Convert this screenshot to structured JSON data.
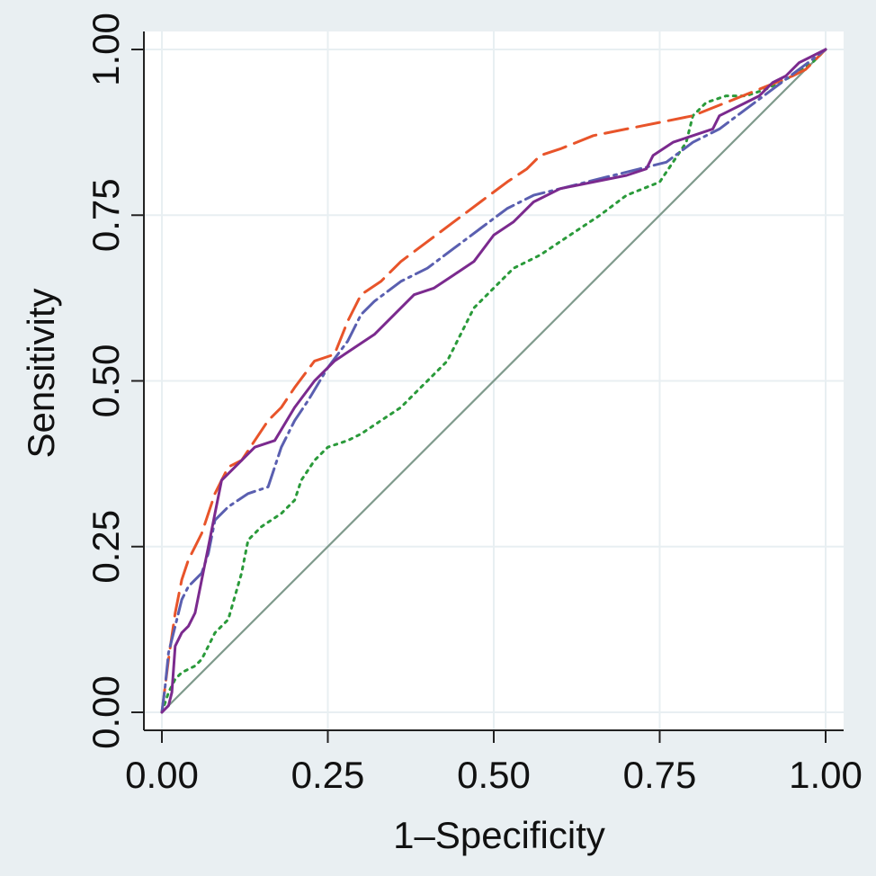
{
  "chart_data": {
    "type": "line",
    "title": "",
    "xlabel": "1–Specificity",
    "ylabel": "Sensitivity",
    "xlim": [
      0,
      1
    ],
    "ylim": [
      0,
      1
    ],
    "grid": true,
    "x_ticks": [
      "0.00",
      "0.25",
      "0.50",
      "0.75",
      "1.00"
    ],
    "y_ticks": [
      "0.00",
      "0.25",
      "0.50",
      "0.75",
      "1.00"
    ],
    "x_tick_values": [
      0,
      0.25,
      0.5,
      0.75,
      1
    ],
    "y_tick_values": [
      0,
      0.25,
      0.5,
      0.75,
      1
    ],
    "colors": {
      "background": "#e9eff2",
      "plot_area": "#ffffff",
      "grid": "#e8eff2",
      "reference": "#7f9a8c",
      "series_orange": "#e8542a",
      "series_blue": "#5a5fb0",
      "series_purple": "#7b2a8e",
      "series_green": "#2a9a3a"
    },
    "series": [
      {
        "color": "#7f9a8c",
        "dash": "solid",
        "width": 2.2,
        "x": [
          0,
          1
        ],
        "y": [
          0,
          1
        ]
      },
      {
        "color": "#2a9a3a",
        "dash": "dot",
        "width": 3,
        "x": [
          0,
          0.01,
          0.02,
          0.03,
          0.05,
          0.06,
          0.07,
          0.08,
          0.1,
          0.12,
          0.13,
          0.15,
          0.18,
          0.2,
          0.21,
          0.23,
          0.25,
          0.28,
          0.3,
          0.33,
          0.36,
          0.38,
          0.4,
          0.43,
          0.45,
          0.47,
          0.5,
          0.53,
          0.57,
          0.6,
          0.63,
          0.66,
          0.7,
          0.75,
          0.77,
          0.79,
          0.8,
          0.82,
          0.85,
          0.88,
          0.91,
          0.95,
          0.98,
          1.0
        ],
        "y": [
          0,
          0.03,
          0.05,
          0.06,
          0.07,
          0.08,
          0.1,
          0.12,
          0.14,
          0.21,
          0.26,
          0.28,
          0.3,
          0.32,
          0.35,
          0.38,
          0.4,
          0.41,
          0.42,
          0.44,
          0.46,
          0.48,
          0.5,
          0.53,
          0.57,
          0.61,
          0.64,
          0.67,
          0.69,
          0.71,
          0.73,
          0.75,
          0.78,
          0.8,
          0.83,
          0.86,
          0.9,
          0.92,
          0.93,
          0.93,
          0.94,
          0.96,
          0.98,
          1.0
        ]
      },
      {
        "color": "#e8542a",
        "dash": "longdash",
        "width": 3,
        "x": [
          0,
          0.01,
          0.02,
          0.03,
          0.04,
          0.05,
          0.06,
          0.08,
          0.1,
          0.12,
          0.14,
          0.16,
          0.18,
          0.2,
          0.23,
          0.26,
          0.28,
          0.3,
          0.33,
          0.36,
          0.4,
          0.44,
          0.48,
          0.52,
          0.55,
          0.57,
          0.6,
          0.65,
          0.7,
          0.75,
          0.8,
          0.85,
          0.9,
          0.95,
          0.97,
          1.0
        ],
        "y": [
          0,
          0.08,
          0.15,
          0.2,
          0.23,
          0.25,
          0.27,
          0.33,
          0.37,
          0.38,
          0.41,
          0.44,
          0.46,
          0.49,
          0.53,
          0.54,
          0.59,
          0.63,
          0.65,
          0.68,
          0.71,
          0.74,
          0.77,
          0.8,
          0.82,
          0.84,
          0.85,
          0.87,
          0.88,
          0.89,
          0.9,
          0.92,
          0.94,
          0.96,
          0.97,
          1.0
        ]
      },
      {
        "color": "#5a5fb0",
        "dash": "dashdot",
        "width": 3,
        "x": [
          0,
          0.005,
          0.01,
          0.02,
          0.03,
          0.04,
          0.06,
          0.07,
          0.08,
          0.09,
          0.1,
          0.13,
          0.16,
          0.18,
          0.2,
          0.22,
          0.25,
          0.28,
          0.3,
          0.32,
          0.36,
          0.4,
          0.44,
          0.48,
          0.52,
          0.56,
          0.6,
          0.64,
          0.68,
          0.72,
          0.76,
          0.8,
          0.84,
          0.88,
          0.92,
          0.96,
          1.0
        ],
        "y": [
          0,
          0.04,
          0.09,
          0.13,
          0.17,
          0.19,
          0.21,
          0.24,
          0.29,
          0.3,
          0.31,
          0.33,
          0.34,
          0.4,
          0.44,
          0.47,
          0.52,
          0.56,
          0.6,
          0.62,
          0.65,
          0.67,
          0.7,
          0.73,
          0.76,
          0.78,
          0.79,
          0.8,
          0.81,
          0.82,
          0.83,
          0.86,
          0.88,
          0.91,
          0.94,
          0.97,
          1.0
        ]
      },
      {
        "color": "#7b2a8e",
        "dash": "solid",
        "width": 3,
        "x": [
          0,
          0.01,
          0.015,
          0.02,
          0.03,
          0.04,
          0.05,
          0.06,
          0.07,
          0.08,
          0.09,
          0.1,
          0.12,
          0.14,
          0.17,
          0.2,
          0.23,
          0.26,
          0.29,
          0.32,
          0.35,
          0.38,
          0.41,
          0.44,
          0.47,
          0.5,
          0.53,
          0.56,
          0.6,
          0.65,
          0.7,
          0.73,
          0.74,
          0.77,
          0.8,
          0.83,
          0.84,
          0.86,
          0.88,
          0.9,
          0.92,
          0.94,
          0.96,
          0.98,
          1.0
        ],
        "y": [
          0,
          0.01,
          0.03,
          0.1,
          0.12,
          0.13,
          0.15,
          0.2,
          0.25,
          0.3,
          0.35,
          0.36,
          0.38,
          0.4,
          0.41,
          0.46,
          0.5,
          0.53,
          0.55,
          0.57,
          0.6,
          0.63,
          0.64,
          0.66,
          0.68,
          0.72,
          0.74,
          0.77,
          0.79,
          0.8,
          0.81,
          0.82,
          0.84,
          0.86,
          0.87,
          0.88,
          0.9,
          0.91,
          0.92,
          0.93,
          0.95,
          0.96,
          0.98,
          0.99,
          1.0
        ]
      }
    ]
  }
}
